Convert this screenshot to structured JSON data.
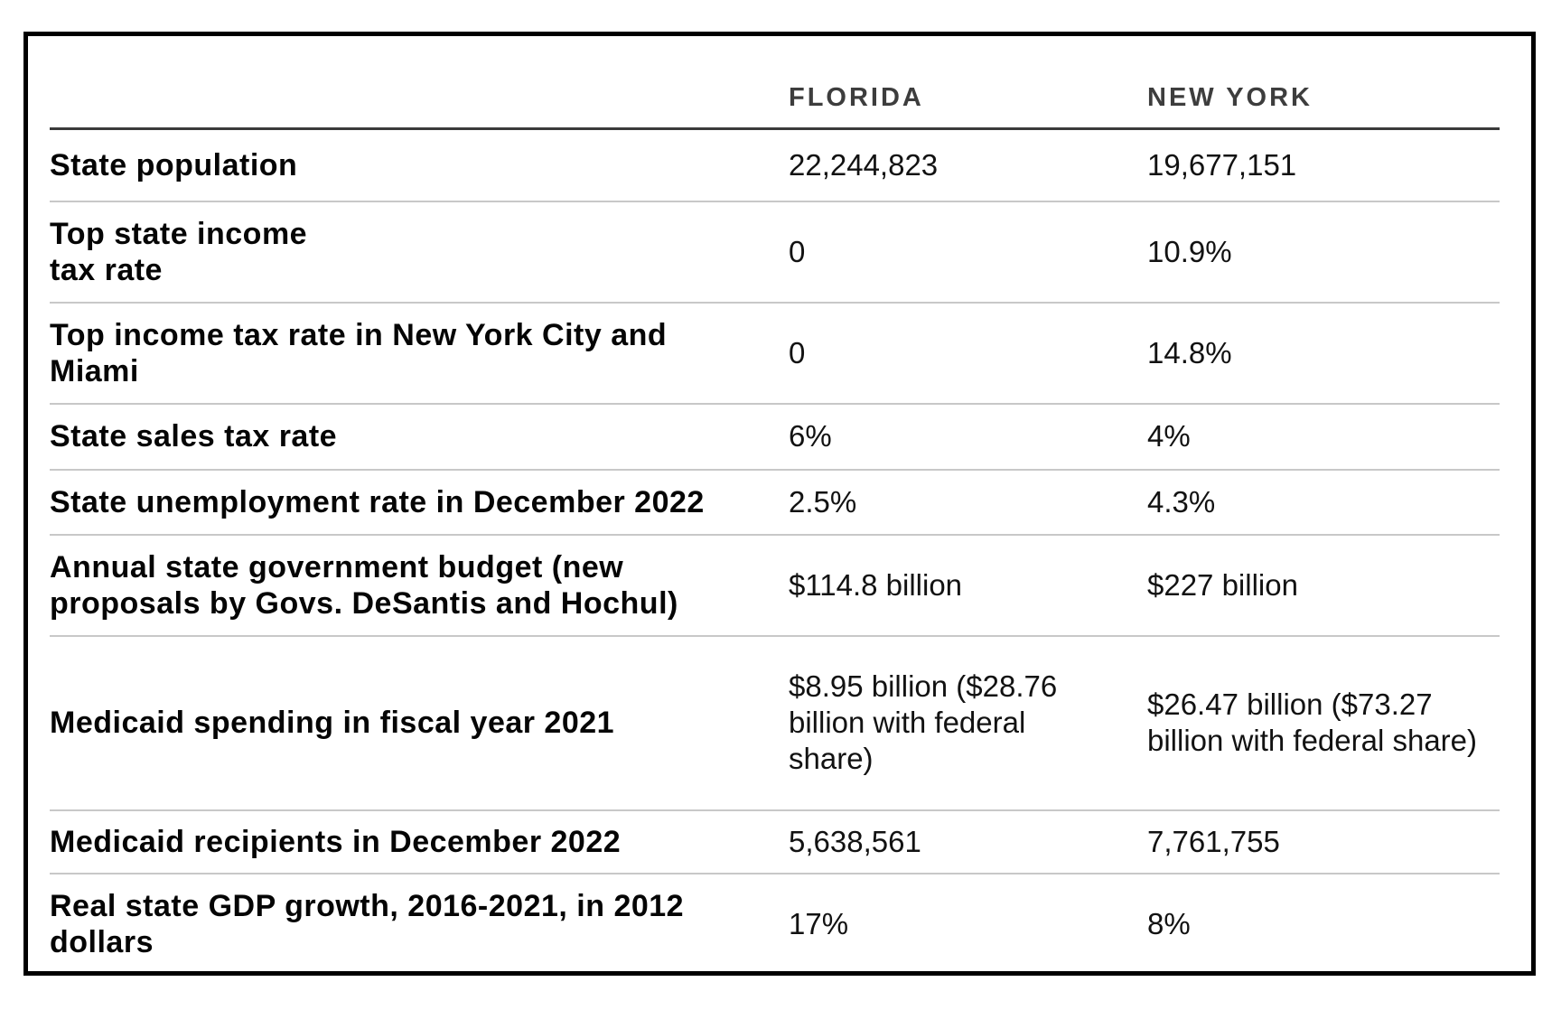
{
  "chart_data": {
    "type": "table",
    "title": "",
    "columns": [
      "FLORIDA",
      "NEW YORK"
    ],
    "rows": [
      {
        "label": "State population",
        "florida": "22,244,823",
        "new_york": "19,677,151"
      },
      {
        "label": "Top state income\ntax rate",
        "florida": "0",
        "new_york": "10.9%"
      },
      {
        "label": "Top income tax rate in New York City and\nMiami",
        "florida": "0",
        "new_york": "14.8%"
      },
      {
        "label": "State sales tax rate",
        "florida": "6%",
        "new_york": "4%"
      },
      {
        "label": "State unemployment rate in December 2022",
        "florida": "2.5%",
        "new_york": "4.3%"
      },
      {
        "label": "Annual state government budget (new\nproposals by Govs. DeSantis and Hochul)",
        "florida": "$114.8 billion",
        "new_york": "$227 billion"
      },
      {
        "label": "Medicaid spending in fiscal year 2021",
        "florida": "$8.95 billion ($28.76\nbillion with federal\nshare)",
        "new_york": "$26.47 billion ($73.27\nbillion with federal share)"
      },
      {
        "label": "Medicaid recipients in December 2022",
        "florida": "5,638,561",
        "new_york": "7,761,755"
      },
      {
        "label": "Real state GDP growth, 2016-2021, in 2012\ndollars",
        "florida": "17%",
        "new_york": "8%"
      }
    ],
    "layout": {
      "grid": "horizontal row dividers only",
      "header_position": "top"
    },
    "colors": {
      "frame_border": "#000000",
      "header_rule": "#3a3a3a",
      "row_divider": "#c8c8c8",
      "header_text": "#3d3d3d",
      "label_text": "#050505",
      "value_text": "#121212",
      "background": "#ffffff"
    }
  }
}
